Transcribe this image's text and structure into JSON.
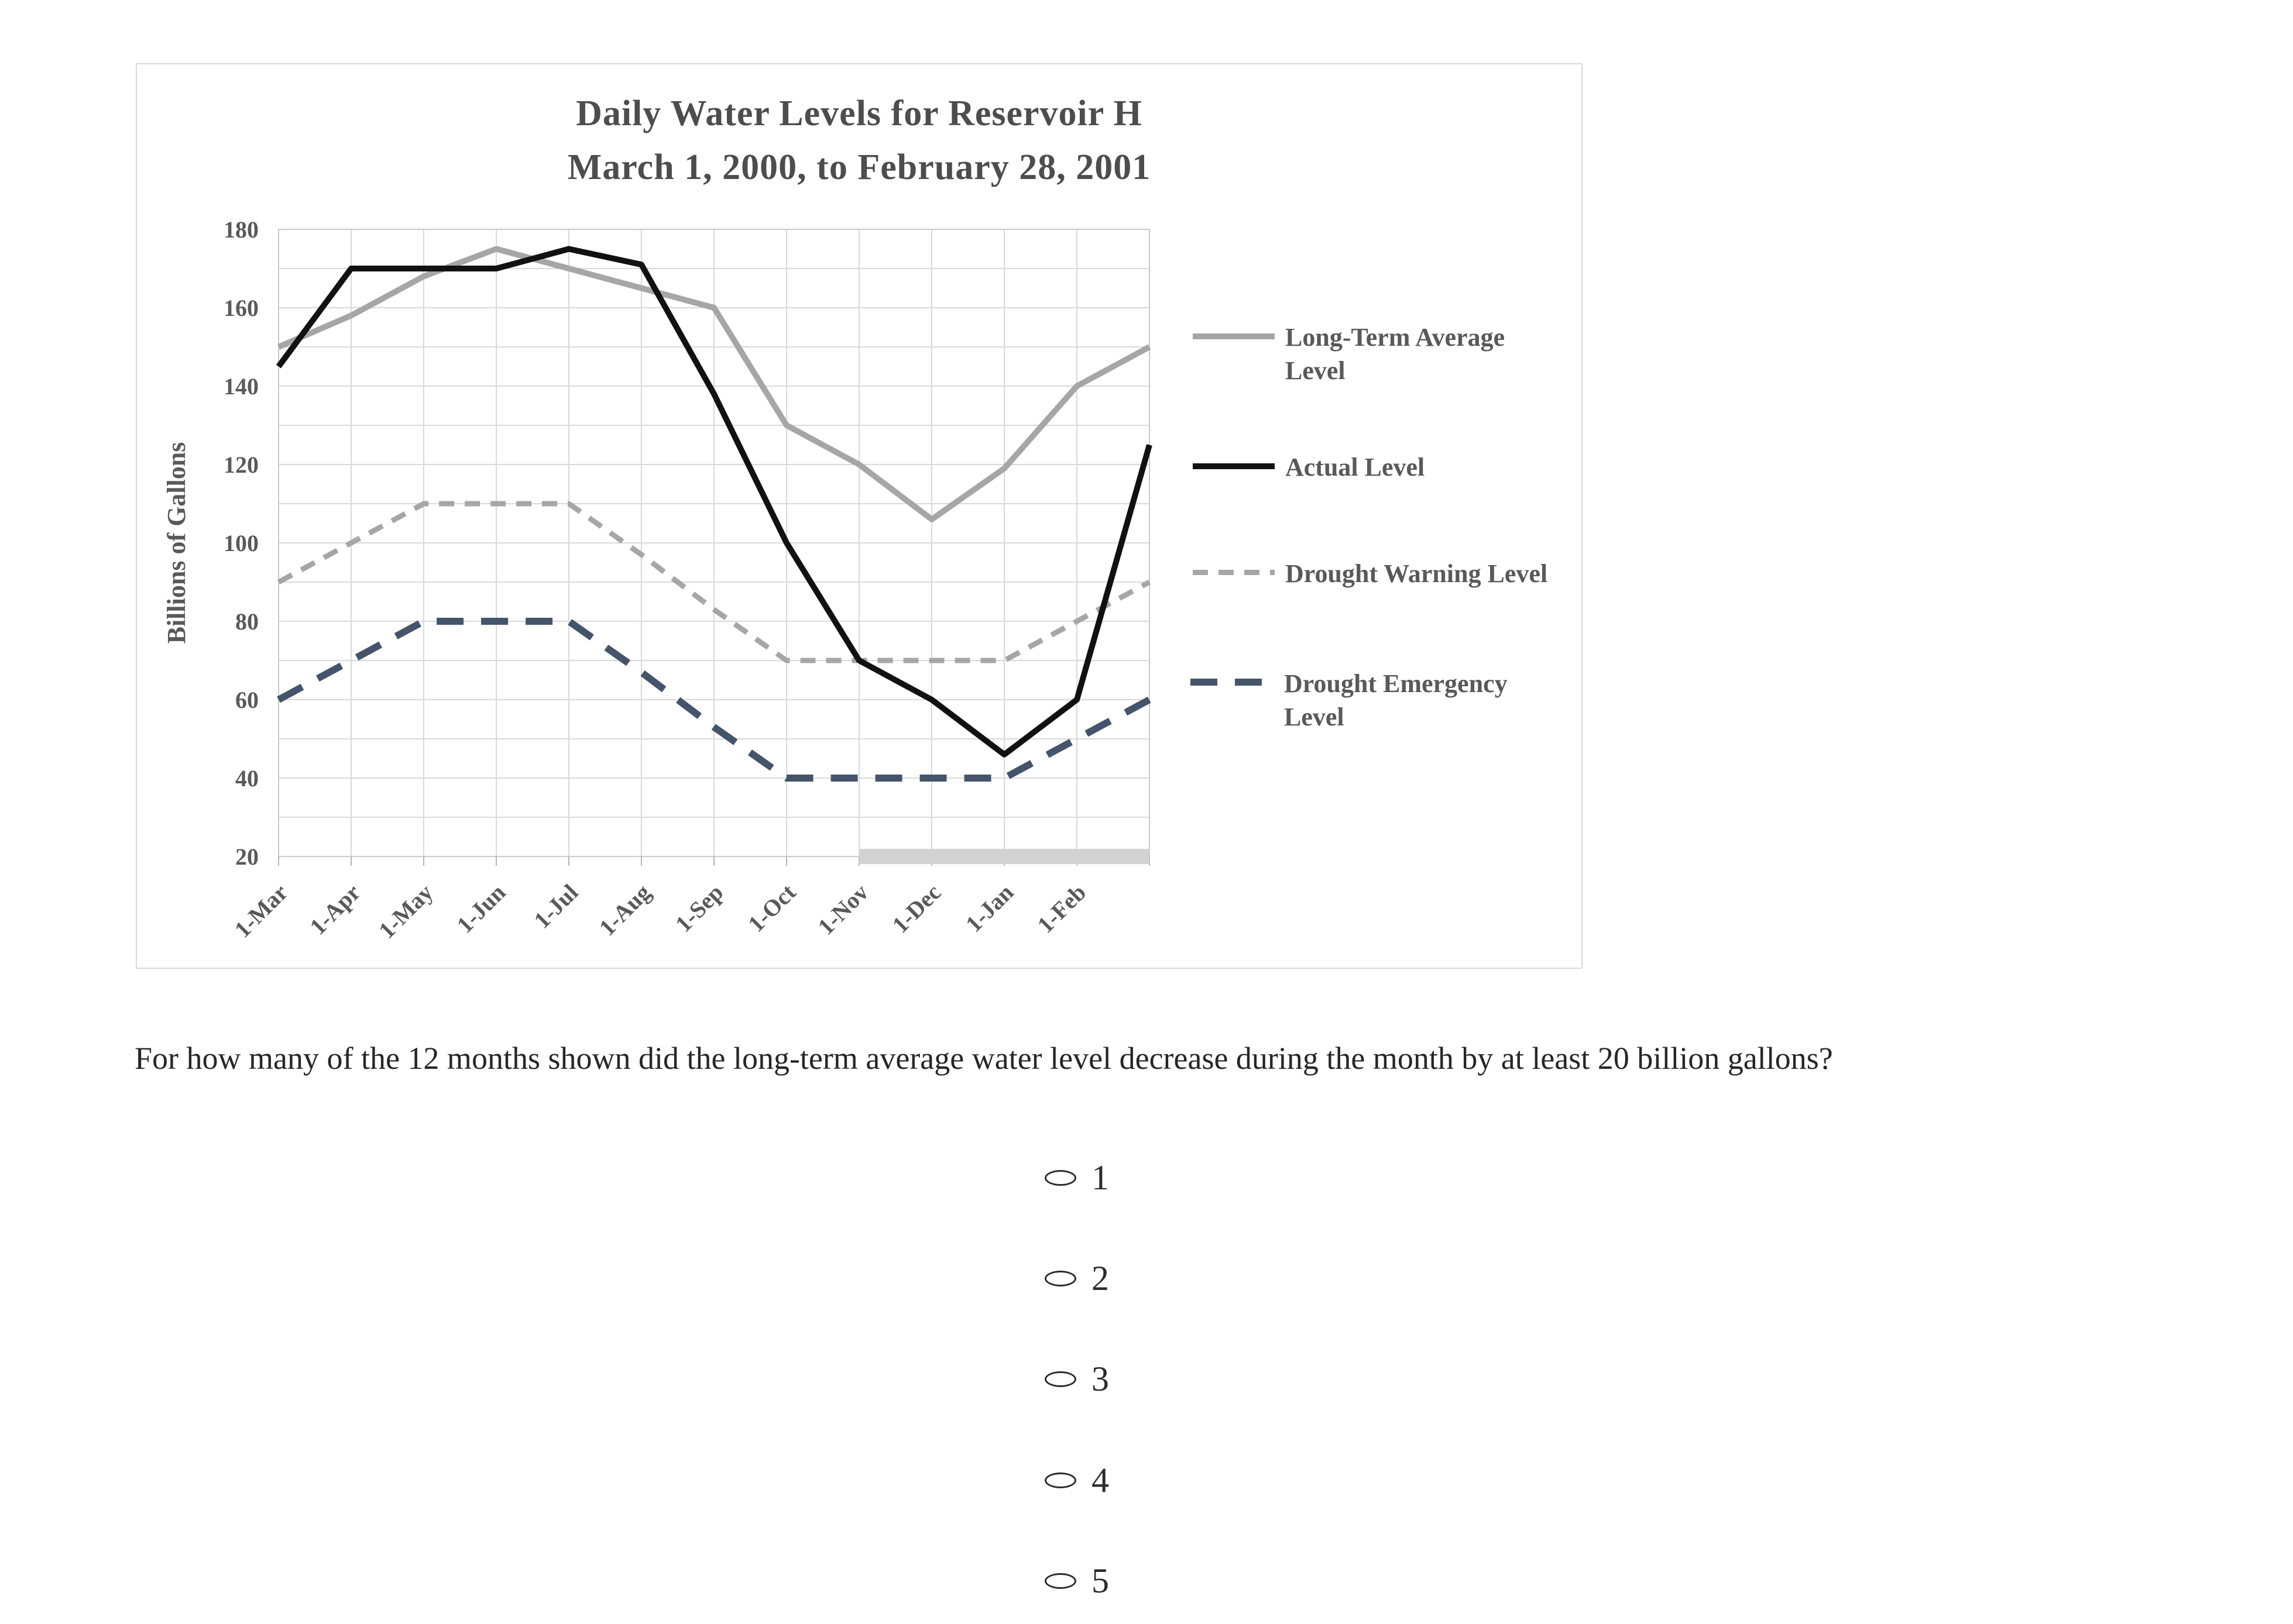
{
  "chart": {
    "title_line1": "Daily Water Levels for Reservoir H",
    "title_line2": "March 1, 2000, to February 28, 2001",
    "y_axis_title": "Billions of Gallons"
  },
  "chart_data": {
    "type": "line",
    "title": "Daily Water Levels for Reservoir H  March 1, 2000, to February 28, 2001",
    "xlabel": "",
    "ylabel": "Billions of Gallons",
    "ylim": [
      20,
      180
    ],
    "grid": true,
    "grid_step_y": 10,
    "legend_position": "right",
    "y_tick_labels": [
      "180",
      "160",
      "140",
      "120",
      "100",
      "80",
      "60",
      "40",
      "20"
    ],
    "categories": [
      "1-Mar",
      "1-Apr",
      "1-May",
      "1-Jun",
      "1-Jul",
      "1-Aug",
      "1-Sep",
      "1-Oct",
      "1-Nov",
      "1-Dec",
      "1-Jan",
      "1-Feb"
    ],
    "series": [
      {
        "name": "Long-Term Average Level",
        "color": "#a6a6a6",
        "line_style": "solid",
        "values": [
          150,
          158,
          168,
          175,
          170,
          165,
          160,
          130,
          120,
          106,
          119,
          140,
          150
        ]
      },
      {
        "name": "Actual Level",
        "color": "#111111",
        "line_style": "solid",
        "values": [
          145,
          170,
          170,
          170,
          175,
          171,
          138,
          100,
          70,
          60,
          46,
          60,
          125
        ]
      },
      {
        "name": "Drought Warning Level",
        "color": "#a6a6a6",
        "line_style": "dashed",
        "values": [
          90,
          100,
          110,
          110,
          110,
          97,
          83,
          70,
          70,
          70,
          70,
          80,
          90
        ]
      },
      {
        "name": "Drought Emergency Level",
        "color": "#44546a",
        "line_style": "long-dashed",
        "values": [
          60,
          70,
          80,
          80,
          80,
          67,
          53,
          40,
          40,
          40,
          40,
          50,
          60
        ]
      }
    ],
    "highlight_bar": {
      "start_index": 8,
      "end_index": 12,
      "value": 20,
      "color": "#d2d2d2"
    },
    "colors": {
      "gridline": "#d9d9d9",
      "plot_border": "#c9c9c9",
      "axis_text": "#595959",
      "tick": "#b3b3b3"
    }
  },
  "question": {
    "text": "For how many of the 12 months shown did the long-term average water level decrease during the month by at least 20 billion gallons?"
  },
  "options": [
    {
      "label": "1"
    },
    {
      "label": "2"
    },
    {
      "label": "3"
    },
    {
      "label": "4"
    },
    {
      "label": "5"
    }
  ]
}
